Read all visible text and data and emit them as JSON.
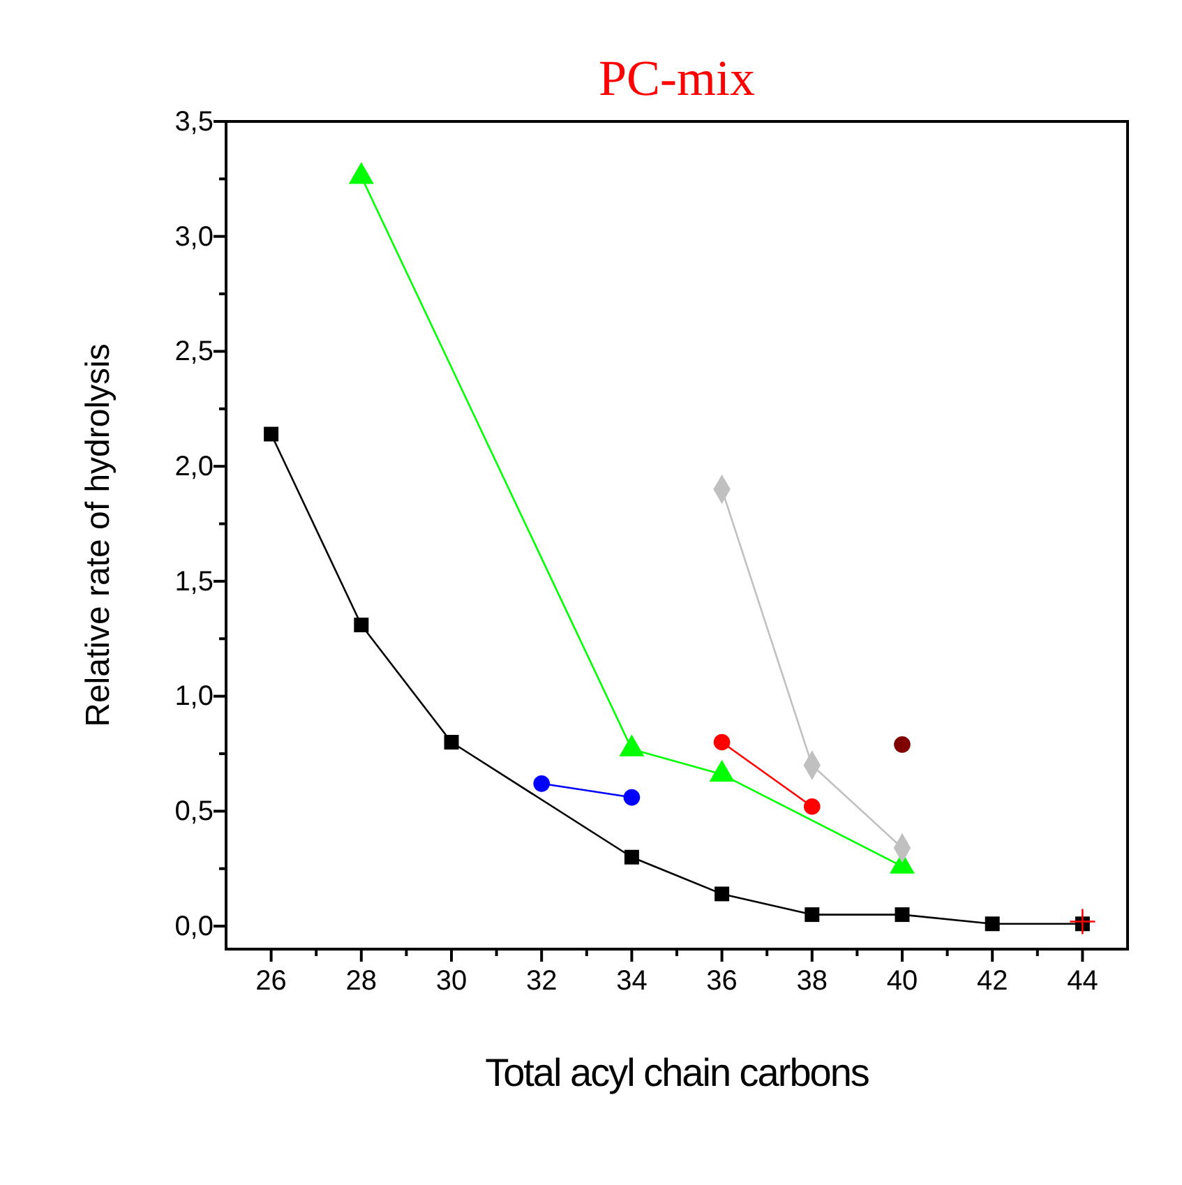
{
  "chart_data": {
    "type": "line",
    "title": "PC-mix",
    "xlabel": "Total acyl chain carbons",
    "ylabel": "Relative rate of hydrolysis",
    "xlim": [
      25,
      45
    ],
    "ylim": [
      -0.1,
      3.5
    ],
    "xticks": [
      26,
      {
        "value": 27,
        "label": null
      },
      28,
      {
        "value": 29,
        "label": null
      },
      30,
      {
        "value": 31,
        "label": null
      },
      32,
      {
        "value": 33,
        "label": null
      },
      34,
      {
        "value": 35,
        "label": null
      },
      36,
      {
        "value": 37,
        "label": null
      },
      38,
      {
        "value": 39,
        "label": null
      },
      40,
      {
        "value": 41,
        "label": null
      },
      42,
      {
        "value": 43,
        "label": null
      },
      44
    ],
    "yticks": [
      {
        "value": 0,
        "label": "0,0"
      },
      {
        "value": 0.25,
        "label": null
      },
      {
        "value": 0.5,
        "label": "0,5"
      },
      {
        "value": 0.75,
        "label": null
      },
      {
        "value": 1,
        "label": "1,0"
      },
      {
        "value": 1.25,
        "label": null
      },
      {
        "value": 1.5,
        "label": "1,5"
      },
      {
        "value": 1.75,
        "label": null
      },
      {
        "value": 2,
        "label": "2,0"
      },
      {
        "value": 2.25,
        "label": null
      },
      {
        "value": 2.5,
        "label": "2,5"
      },
      {
        "value": 2.75,
        "label": null
      },
      {
        "value": 3,
        "label": "3,0"
      },
      {
        "value": 3.25,
        "label": null
      },
      {
        "value": 3.5,
        "label": "3,5"
      }
    ],
    "grid": false,
    "series": [
      {
        "color": "#000000",
        "marker": "square",
        "x": [
          26,
          28,
          30,
          34,
          36,
          38,
          40,
          42,
          44
        ],
        "values": [
          2.14,
          1.31,
          0.8,
          0.3,
          0.14,
          0.05,
          0.05,
          0.01,
          0.01
        ]
      },
      {
        "color": "#00ff00",
        "marker": "triangle",
        "x": [
          28,
          34,
          36,
          40
        ],
        "values": [
          3.26,
          0.77,
          0.66,
          0.26
        ]
      },
      {
        "color": "#0000ff",
        "marker": "circle",
        "x": [
          32,
          34
        ],
        "values": [
          0.62,
          0.56
        ]
      },
      {
        "color": "#ff0000",
        "marker": "circle",
        "x": [
          36,
          38
        ],
        "values": [
          0.8,
          0.52
        ]
      },
      {
        "color": "#c0c0c0",
        "marker": "diamond",
        "x": [
          36,
          38,
          40
        ],
        "values": [
          1.9,
          0.7,
          0.34
        ]
      },
      {
        "type": "scatter",
        "color": "#800000",
        "marker": "circle",
        "x": [
          40
        ],
        "values": [
          0.79
        ]
      },
      {
        "type": "scatter",
        "color": "#ff0000",
        "marker": "cross",
        "x": [
          44
        ],
        "values": [
          0.02
        ]
      }
    ]
  }
}
